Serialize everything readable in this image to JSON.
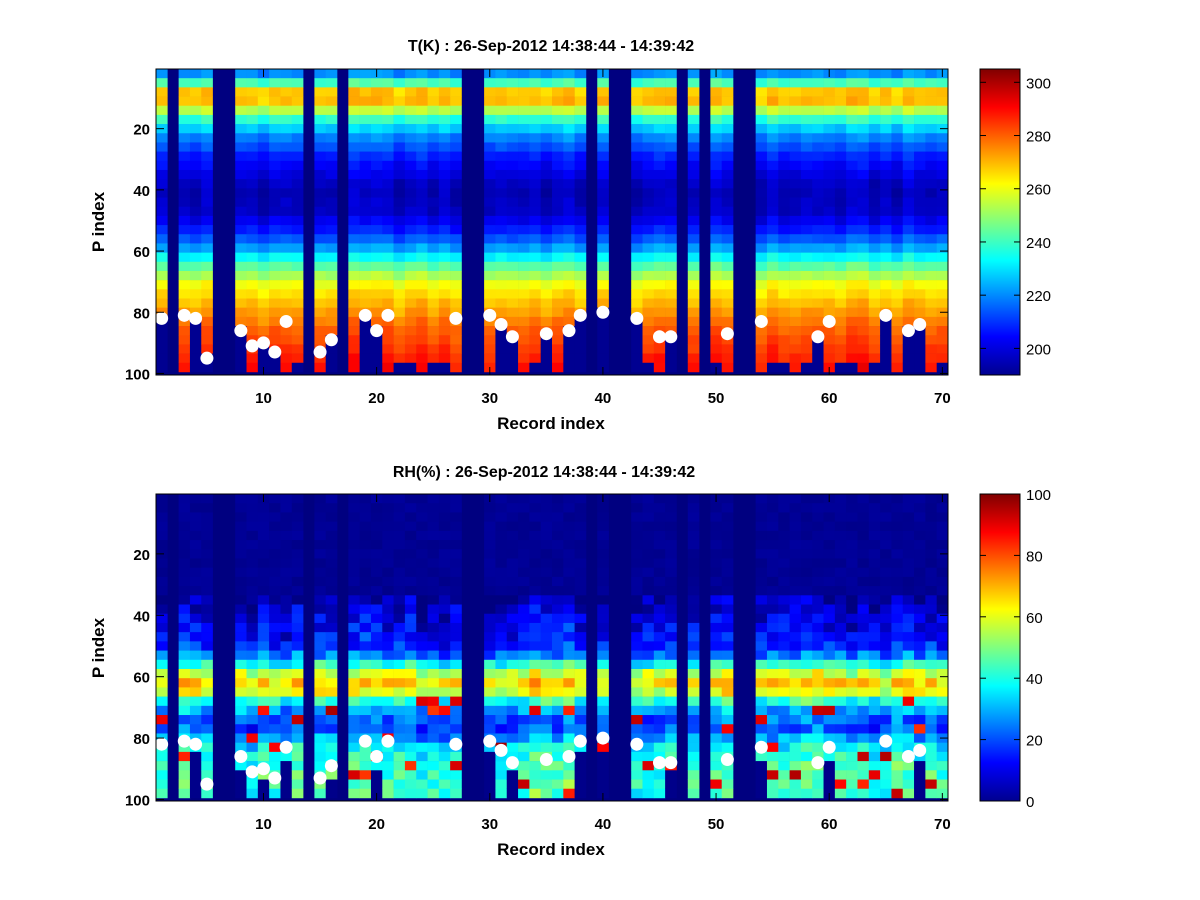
{
  "chart_data": [
    {
      "type": "heatmap",
      "title": "T(K) : 26-Sep-2012 14:38:44 - 14:39:42",
      "xlabel": "Record index",
      "ylabel": "P index",
      "xlim": [
        0.5,
        70.5
      ],
      "ylim": [
        0.5,
        100.5
      ],
      "x_ticks": [
        10,
        20,
        30,
        40,
        50,
        60,
        70
      ],
      "y_ticks": [
        20,
        40,
        60,
        80,
        100
      ],
      "colorbar": {
        "colormap": "jet",
        "range": [
          190,
          305
        ],
        "ticks": [
          200,
          220,
          240,
          260,
          280,
          300
        ]
      },
      "missing_records": [
        2,
        6,
        7,
        14,
        17,
        28,
        29,
        39,
        41,
        42,
        47,
        49,
        52,
        53
      ],
      "profile_summary_K": {
        "p1_to_5": 220,
        "p8_to_12": 275,
        "p40": 195,
        "p60": 225,
        "p80": 270,
        "p98": 290
      },
      "surface_markers": {
        "record_index": [
          1,
          3,
          4,
          5,
          8,
          9,
          10,
          11,
          12,
          15,
          16,
          19,
          20,
          21,
          27,
          30,
          31,
          32,
          35,
          37,
          38,
          40,
          43,
          45,
          46,
          51,
          54,
          59,
          60,
          65,
          67,
          68
        ],
        "p_index": [
          82,
          81,
          82,
          95,
          86,
          91,
          90,
          93,
          83,
          93,
          89,
          81,
          86,
          81,
          82,
          81,
          84,
          88,
          87,
          86,
          81,
          80,
          82,
          88,
          88,
          87,
          83,
          88,
          83,
          81,
          86,
          84
        ]
      }
    },
    {
      "type": "heatmap",
      "title": "RH(%) : 26-Sep-2012 14:38:44 - 14:39:42",
      "xlabel": "Record index",
      "ylabel": "P index",
      "xlim": [
        0.5,
        70.5
      ],
      "ylim": [
        0.5,
        100.5
      ],
      "x_ticks": [
        10,
        20,
        30,
        40,
        50,
        60,
        70
      ],
      "y_ticks": [
        20,
        40,
        60,
        80,
        100
      ],
      "colorbar": {
        "colormap": "jet",
        "range": [
          0,
          100
        ],
        "ticks": [
          0,
          20,
          40,
          60,
          80,
          100
        ]
      },
      "missing_records": [
        2,
        6,
        7,
        14,
        17,
        28,
        29,
        39,
        41,
        42,
        47,
        49,
        52,
        53
      ],
      "profile_summary_pct": {
        "p1_to_35": 2,
        "p50": 15,
        "p62": 65,
        "p70": 35,
        "p85": 45
      },
      "surface_markers": {
        "record_index": [
          1,
          3,
          4,
          5,
          8,
          9,
          10,
          11,
          12,
          15,
          16,
          19,
          20,
          21,
          27,
          30,
          31,
          32,
          35,
          37,
          38,
          40,
          43,
          45,
          46,
          51,
          54,
          59,
          60,
          65,
          67,
          68
        ],
        "p_index": [
          82,
          81,
          82,
          95,
          86,
          91,
          90,
          93,
          83,
          93,
          89,
          81,
          86,
          81,
          82,
          81,
          84,
          88,
          87,
          86,
          81,
          80,
          82,
          88,
          88,
          87,
          83,
          88,
          83,
          81,
          86,
          84
        ]
      }
    }
  ]
}
